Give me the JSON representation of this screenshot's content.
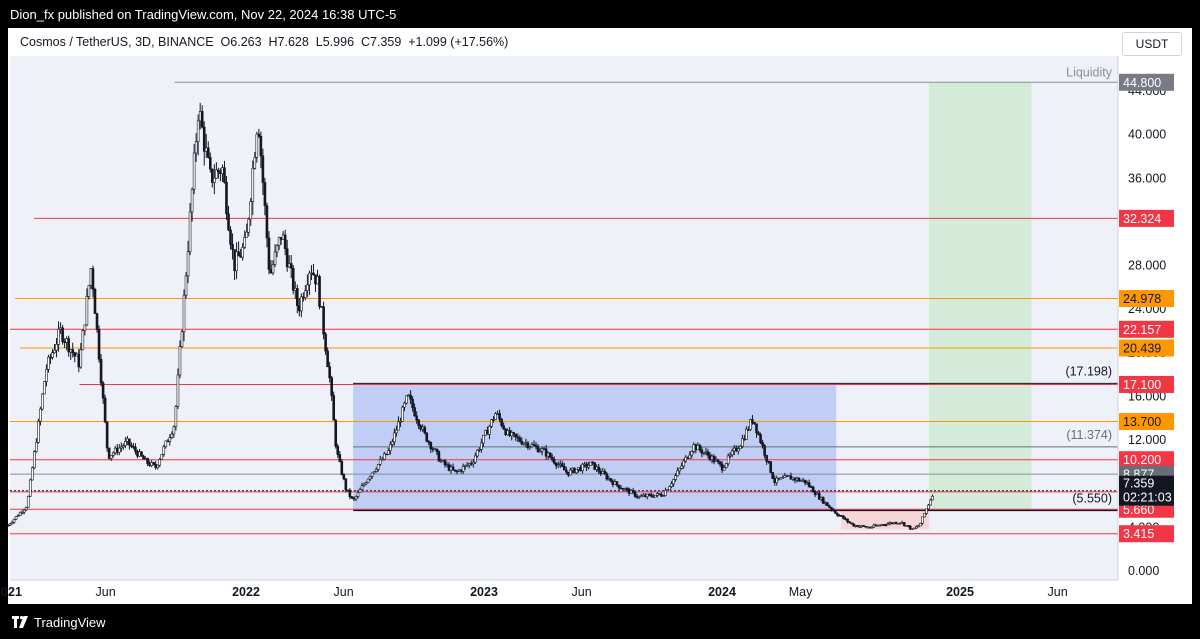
{
  "publisher": "Dion_fx published on TradingView.com, Nov 22, 2024 16:38 UTC-5",
  "header": {
    "symbol": "Cosmos / TetherUS, 3D, BINANCE",
    "open_label": "O",
    "open": "6.263",
    "high_label": "H",
    "high": "7.628",
    "low_label": "L",
    "low": "5.996",
    "close_label": "C",
    "close": "7.359",
    "change": "+1.099 (+17.56%)"
  },
  "currency": "USDT",
  "footer": {
    "brand": "TradingView"
  },
  "colors": {
    "red": "#f23645",
    "orange": "#ff9800",
    "blue_zone": "#c0cdf5",
    "green_zone": "#d4ebd9",
    "red_zone": "#f7d6d7",
    "background": "#eef1f8"
  },
  "chart_data": {
    "type": "candlestick",
    "x_ticks": [
      "2021",
      "Jun",
      "2022",
      "Jun",
      "2023",
      "Jun",
      "2024",
      "May",
      "2025",
      "Jun"
    ],
    "y_ticks": [
      "0.000",
      "4.000",
      "8.000",
      "12.000",
      "16.000",
      "20.000",
      "24.000",
      "28.000",
      "36.000",
      "40.000",
      "44.000"
    ],
    "ylim": [
      0,
      44.8
    ],
    "price_series": [
      [
        2021.0,
        4.2
      ],
      [
        2021.08,
        6.0
      ],
      [
        2021.16,
        18.5
      ],
      [
        2021.22,
        22.0
      ],
      [
        2021.3,
        19.0
      ],
      [
        2021.35,
        28.0
      ],
      [
        2021.42,
        10.5
      ],
      [
        2021.5,
        11.8
      ],
      [
        2021.58,
        10.0
      ],
      [
        2021.62,
        9.5
      ],
      [
        2021.7,
        13.5
      ],
      [
        2021.75,
        28.0
      ],
      [
        2021.8,
        42.5
      ],
      [
        2021.85,
        36.0
      ],
      [
        2021.9,
        37.0
      ],
      [
        2021.95,
        28.0
      ],
      [
        2022.0,
        30.0
      ],
      [
        2022.05,
        42.0
      ],
      [
        2022.1,
        27.0
      ],
      [
        2022.15,
        31.0
      ],
      [
        2022.22,
        24.0
      ],
      [
        2022.27,
        28.0
      ],
      [
        2022.3,
        26.5
      ],
      [
        2022.35,
        18.0
      ],
      [
        2022.38,
        11.0
      ],
      [
        2022.42,
        7.5
      ],
      [
        2022.45,
        6.4
      ],
      [
        2022.52,
        8.8
      ],
      [
        2022.6,
        11.0
      ],
      [
        2022.68,
        16.0
      ],
      [
        2022.75,
        12.5
      ],
      [
        2022.82,
        10.0
      ],
      [
        2022.88,
        9.0
      ],
      [
        2022.95,
        10.0
      ],
      [
        2023.05,
        14.5
      ],
      [
        2023.1,
        12.5
      ],
      [
        2023.15,
        12.0
      ],
      [
        2023.25,
        11.0
      ],
      [
        2023.35,
        9.0
      ],
      [
        2023.45,
        9.8
      ],
      [
        2023.55,
        8.0
      ],
      [
        2023.65,
        6.8
      ],
      [
        2023.75,
        7.0
      ],
      [
        2023.8,
        8.5
      ],
      [
        2023.88,
        11.5
      ],
      [
        2023.95,
        10.5
      ],
      [
        2024.0,
        9.5
      ],
      [
        2024.08,
        11.8
      ],
      [
        2024.13,
        14.0
      ],
      [
        2024.18,
        10.8
      ],
      [
        2024.22,
        8.2
      ],
      [
        2024.28,
        8.6
      ],
      [
        2024.35,
        8.2
      ],
      [
        2024.42,
        6.5
      ],
      [
        2024.48,
        5.3
      ],
      [
        2024.55,
        4.2
      ],
      [
        2024.62,
        4.0
      ],
      [
        2024.68,
        4.3
      ],
      [
        2024.75,
        4.5
      ],
      [
        2024.8,
        3.8
      ],
      [
        2024.83,
        4.2
      ],
      [
        2024.87,
        6.26
      ],
      [
        2024.89,
        7.36
      ]
    ],
    "horizontal_levels": [
      {
        "value": 32.324,
        "label": "32.324",
        "color": "red"
      },
      {
        "value": 24.978,
        "label": "24.978",
        "color": "orange"
      },
      {
        "value": 22.157,
        "label": "22.157",
        "color": "red"
      },
      {
        "value": 20.439,
        "label": "20.439",
        "color": "orange"
      },
      {
        "value": 17.1,
        "label": "17.100",
        "color": "red"
      },
      {
        "value": 13.7,
        "label": "13.700",
        "color": "orange"
      },
      {
        "value": 10.2,
        "label": "10.200",
        "color": "red"
      },
      {
        "value": 8.877,
        "label": "8.877",
        "color": "gray"
      },
      {
        "value": 7.249,
        "label": "7.249",
        "color": "red"
      },
      {
        "value": 5.66,
        "label": "5.660",
        "color": "red"
      },
      {
        "value": 3.415,
        "label": "3.415",
        "color": "red"
      }
    ],
    "last_price": {
      "value": 7.359,
      "label": "7.359",
      "countdown": "02:21:03"
    },
    "top_level": {
      "value": 44.8,
      "label": "44.800",
      "text": "Liquidity"
    },
    "range_box": {
      "x_start": 2022.45,
      "x_end": 2024.48,
      "top": 17.198,
      "bottom": 5.55,
      "top_label": "(17.198)",
      "mid_value": 11.374,
      "mid_label": "(11.374)",
      "bottom_label": "(5.550)"
    },
    "target_zone": {
      "x_start": 2024.87,
      "x_end": 2025.3,
      "top": 44.8,
      "bottom": 5.55
    },
    "stop_zone": {
      "x_start": 2024.5,
      "x_end": 2024.87,
      "top": 5.55,
      "bottom": 3.8
    }
  }
}
